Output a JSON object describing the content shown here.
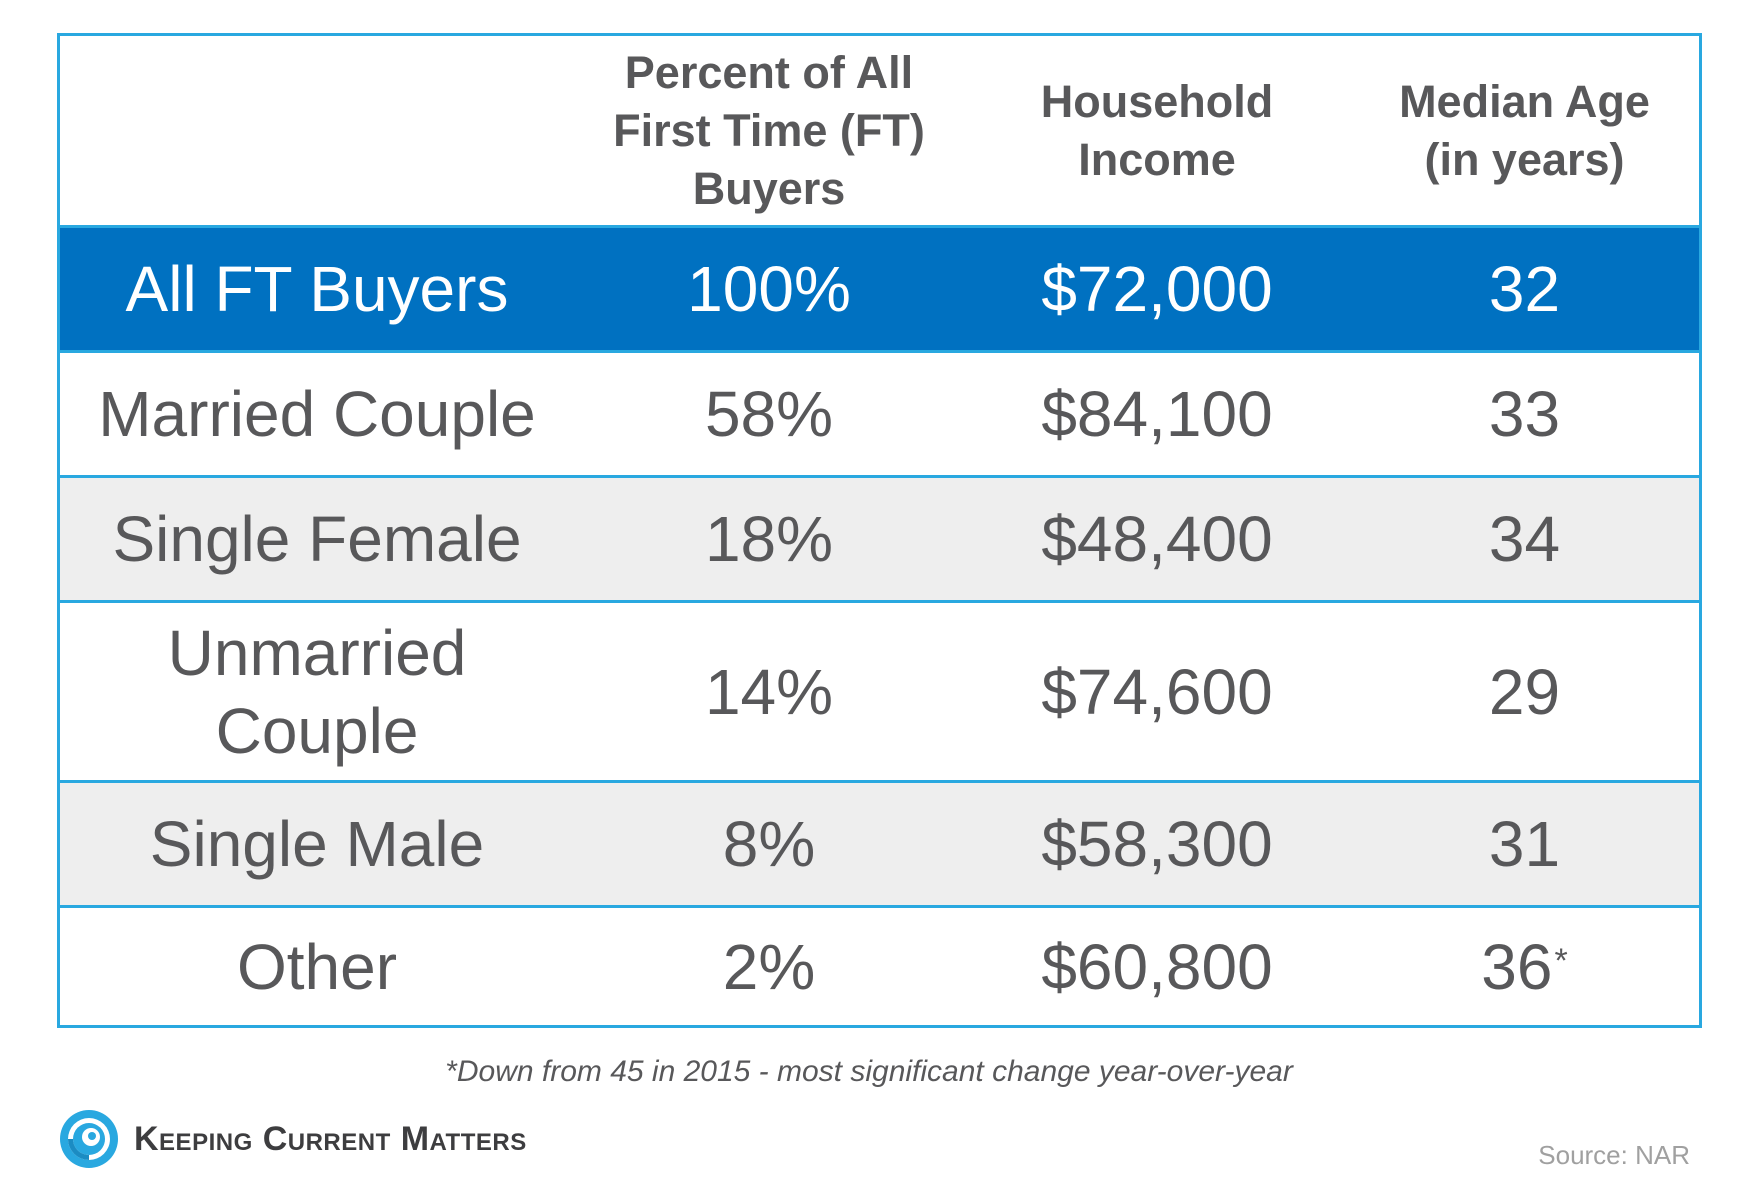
{
  "chart_data": {
    "type": "table",
    "columns": [
      "",
      "Percent of All First Time (FT) Buyers",
      "Household Income",
      "Median Age (in years)"
    ],
    "rows": [
      {
        "label": "All FT Buyers",
        "percent": "100%",
        "income": "$72,000",
        "age": "32",
        "age_note": ""
      },
      {
        "label": "Married Couple",
        "percent": "58%",
        "income": "$84,100",
        "age": "33",
        "age_note": ""
      },
      {
        "label": "Single Female",
        "percent": "18%",
        "income": "$48,400",
        "age": "34",
        "age_note": ""
      },
      {
        "label": "Unmarried Couple",
        "percent": "14%",
        "income": "$74,600",
        "age": "29",
        "age_note": ""
      },
      {
        "label": "Single Male",
        "percent": "8%",
        "income": "$58,300",
        "age": "31",
        "age_note": ""
      },
      {
        "label": "Other",
        "percent": "2%",
        "income": "$60,800",
        "age": "36",
        "age_note": "*"
      }
    ],
    "footnote": "*Down from 45 in 2015 - most significant change year-over-year",
    "source": "Source: NAR"
  },
  "brand": {
    "name": "Keeping Current Matters",
    "logo_icon": "swirl-logo-icon"
  },
  "colors": {
    "border": "#29a8e0",
    "highlight_row": "#0071c1",
    "alt_row": "#eeeeee",
    "text": "#58585a"
  }
}
